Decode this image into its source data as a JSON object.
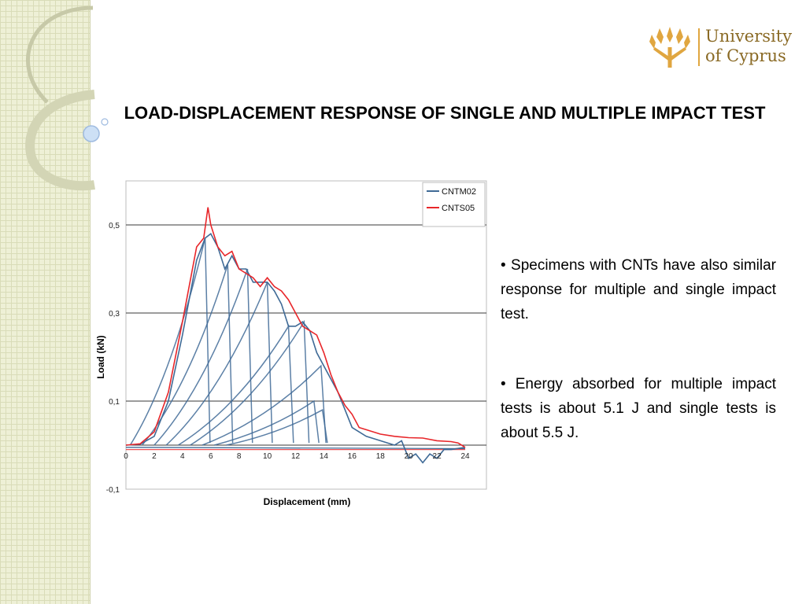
{
  "logo": {
    "line1": "University",
    "line2": "of Cyprus"
  },
  "title": "LOAD-DISPLACEMENT RESPONSE OF SINGLE AND MULTIPLE IMPACT TEST",
  "bullets": [
    "• Specimens with CNTs have also similar response for multiple and single impact test.",
    "• Energy absorbed for multiple impact tests is about 5.1 J and single tests is about 5.5 J."
  ],
  "colors": {
    "cntm02": "#3f6a96",
    "cnts05": "#e8262a",
    "logo": "#e0a640"
  },
  "chart_data": {
    "type": "line",
    "xlabel": "Displacement (mm)",
    "ylabel": "Load (kN)",
    "xlim": [
      0,
      24.5
    ],
    "ylim": [
      -0.1,
      0.6
    ],
    "xticks": [
      0,
      2,
      4,
      6,
      8,
      10,
      12,
      14,
      16,
      18,
      20,
      22,
      24
    ],
    "yticks": [
      {
        "value": -0.1,
        "label": "-0,1"
      },
      {
        "value": 0.1,
        "label": "0,1"
      },
      {
        "value": 0.3,
        "label": "0,3"
      },
      {
        "value": 0.5,
        "label": "0,5"
      }
    ],
    "gridlines_y": [
      0,
      0.1,
      0.3,
      0.5
    ],
    "legend": {
      "position": "top-right",
      "entries": [
        "CNTM02",
        "CNTS05"
      ]
    },
    "series": [
      {
        "name": "CNTM02",
        "color": "#3f6a96",
        "values": [
          [
            0,
            0
          ],
          [
            1,
            0.002
          ],
          [
            2,
            0.02
          ],
          [
            3,
            0.1
          ],
          [
            4,
            0.25
          ],
          [
            5,
            0.42
          ],
          [
            5.6,
            0.47
          ],
          [
            6,
            0.48
          ],
          [
            6.5,
            0.45
          ],
          [
            7,
            0.4
          ],
          [
            7.5,
            0.43
          ],
          [
            8,
            0.4
          ],
          [
            8.5,
            0.4
          ],
          [
            9,
            0.37
          ],
          [
            9.5,
            0.37
          ],
          [
            10,
            0.37
          ],
          [
            10.5,
            0.35
          ],
          [
            11,
            0.32
          ],
          [
            11.5,
            0.27
          ],
          [
            12,
            0.27
          ],
          [
            12.5,
            0.28
          ],
          [
            13,
            0.26
          ],
          [
            13.5,
            0.21
          ],
          [
            14,
            0.18
          ],
          [
            14.5,
            0.15
          ],
          [
            15,
            0.12
          ],
          [
            15.5,
            0.08
          ],
          [
            16,
            0.04
          ],
          [
            16.5,
            0.03
          ],
          [
            17,
            0.02
          ],
          [
            18,
            0.01
          ],
          [
            19,
            0
          ],
          [
            19.5,
            0.01
          ],
          [
            20,
            -0.03
          ],
          [
            20.5,
            -0.02
          ],
          [
            21,
            -0.04
          ],
          [
            21.5,
            -0.02
          ],
          [
            22,
            -0.03
          ],
          [
            22.5,
            -0.01
          ],
          [
            23,
            -0.01
          ],
          [
            24,
            -0.005
          ]
        ]
      },
      {
        "name": "CNTS05",
        "color": "#e8262a",
        "values": [
          [
            0,
            0
          ],
          [
            1,
            0.003
          ],
          [
            2,
            0.03
          ],
          [
            3,
            0.12
          ],
          [
            4,
            0.28
          ],
          [
            5,
            0.45
          ],
          [
            5.5,
            0.47
          ],
          [
            5.8,
            0.54
          ],
          [
            6,
            0.5
          ],
          [
            6.5,
            0.45
          ],
          [
            7,
            0.43
          ],
          [
            7.5,
            0.44
          ],
          [
            8,
            0.4
          ],
          [
            9,
            0.38
          ],
          [
            9.5,
            0.36
          ],
          [
            10,
            0.38
          ],
          [
            10.5,
            0.36
          ],
          [
            11,
            0.35
          ],
          [
            11.5,
            0.33
          ],
          [
            12,
            0.3
          ],
          [
            12.5,
            0.27
          ],
          [
            13,
            0.26
          ],
          [
            13.5,
            0.25
          ],
          [
            14,
            0.21
          ],
          [
            14.5,
            0.16
          ],
          [
            15,
            0.12
          ],
          [
            15.5,
            0.09
          ],
          [
            16,
            0.07
          ],
          [
            16.5,
            0.04
          ],
          [
            17,
            0.035
          ],
          [
            18,
            0.025
          ],
          [
            19,
            0.02
          ],
          [
            20,
            0.017
          ],
          [
            21,
            0.016
          ],
          [
            22,
            0.01
          ],
          [
            23,
            0.008
          ],
          [
            23.5,
            0.005
          ],
          [
            24,
            -0.005
          ]
        ]
      }
    ],
    "multi_impact_peaks": [
      [
        5.6,
        0.47
      ],
      [
        7.2,
        0.41
      ],
      [
        8.6,
        0.4
      ],
      [
        10,
        0.37
      ],
      [
        11.5,
        0.27
      ],
      [
        12.6,
        0.28
      ],
      [
        13.8,
        0.18
      ],
      [
        13.3,
        0.1
      ],
      [
        13.9,
        0.08
      ]
    ]
  }
}
